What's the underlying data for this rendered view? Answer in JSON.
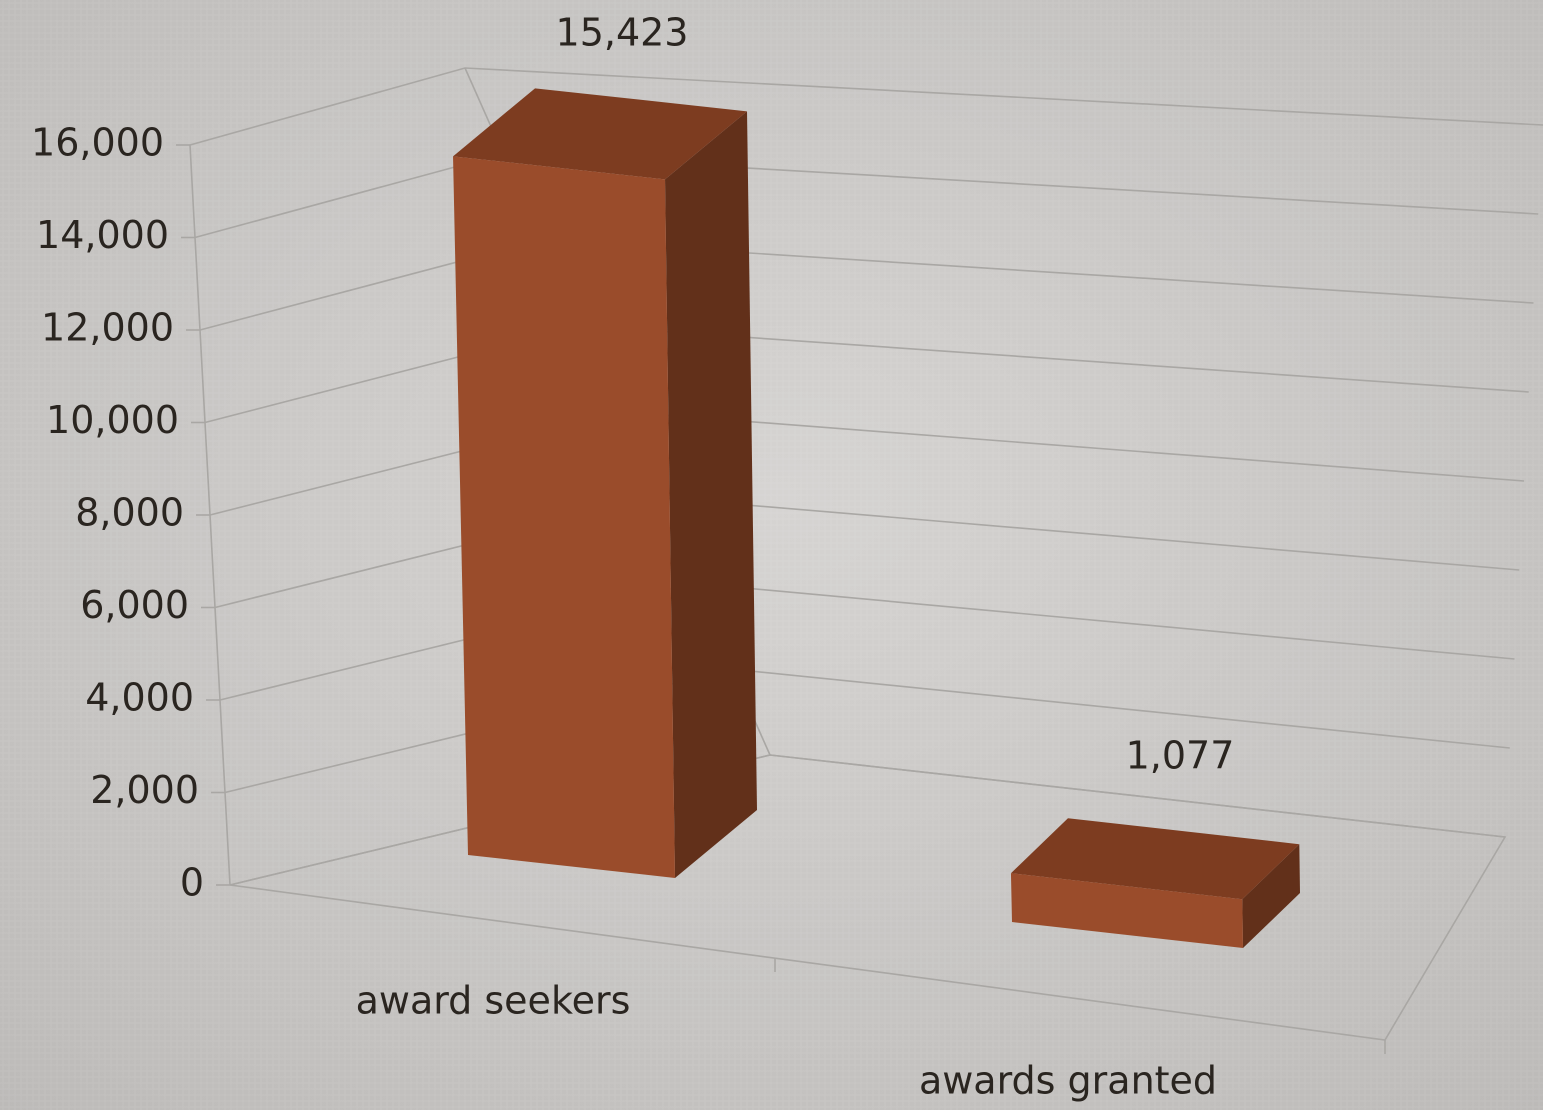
{
  "chart_data": {
    "type": "bar3d",
    "categories": [
      "award seekers",
      "awards granted"
    ],
    "values": [
      15423,
      1077
    ],
    "value_labels": [
      "15,423",
      "1,077"
    ],
    "color": "#9a4c2b",
    "ylim": [
      0,
      16000
    ],
    "yticks": [
      0,
      {
        "value": 2000,
        "label": "2,000"
      },
      {
        "value": 4000,
        "label": "4,000"
      },
      {
        "value": 6000,
        "label": "6,000"
      },
      {
        "value": 8000,
        "label": "8,000"
      },
      {
        "value": 10000,
        "label": "10,000"
      },
      {
        "value": 12000,
        "label": "12,000"
      },
      {
        "value": 14000,
        "label": "14,000"
      },
      {
        "value": 16000,
        "label": "16,000"
      }
    ],
    "grid": true
  }
}
